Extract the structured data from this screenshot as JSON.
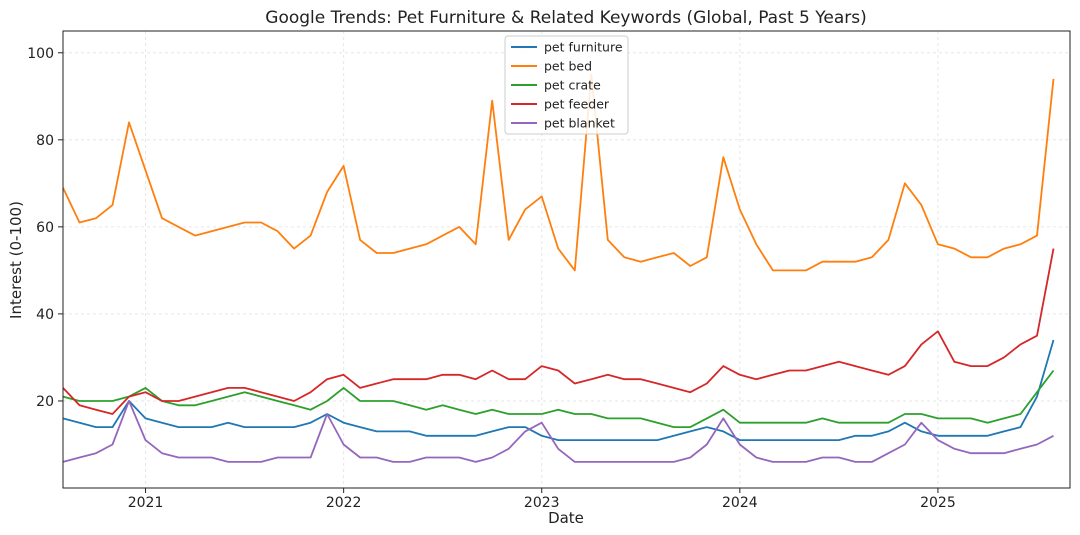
{
  "chart_data": {
    "type": "line",
    "title": "Google Trends: Pet Furniture & Related Keywords (Global, Past 5 Years)",
    "xlabel": "Date",
    "ylabel": "Interest (0-100)",
    "xlim": [
      "2020-08",
      "2025-09"
    ],
    "ylim": [
      0,
      105
    ],
    "x_ticks": [
      "2021",
      "2022",
      "2023",
      "2024",
      "2025"
    ],
    "y_ticks": [
      20,
      40,
      60,
      80,
      100
    ],
    "grid": true,
    "legend_position": "top-center",
    "x": [
      "2020-08",
      "2020-09",
      "2020-10",
      "2020-11",
      "2020-12",
      "2021-01",
      "2021-02",
      "2021-03",
      "2021-04",
      "2021-05",
      "2021-06",
      "2021-07",
      "2021-08",
      "2021-09",
      "2021-10",
      "2021-11",
      "2021-12",
      "2022-01",
      "2022-02",
      "2022-03",
      "2022-04",
      "2022-05",
      "2022-06",
      "2022-07",
      "2022-08",
      "2022-09",
      "2022-10",
      "2022-11",
      "2022-12",
      "2023-01",
      "2023-02",
      "2023-03",
      "2023-04",
      "2023-05",
      "2023-06",
      "2023-07",
      "2023-08",
      "2023-09",
      "2023-10",
      "2023-11",
      "2023-12",
      "2024-01",
      "2024-02",
      "2024-03",
      "2024-04",
      "2024-05",
      "2024-06",
      "2024-07",
      "2024-08",
      "2024-09",
      "2024-10",
      "2024-11",
      "2024-12",
      "2025-01",
      "2025-02",
      "2025-03",
      "2025-04",
      "2025-05",
      "2025-06",
      "2025-07",
      "2025-08"
    ],
    "series": [
      {
        "name": "pet furniture",
        "color": "#1f77b4",
        "values": [
          16,
          15,
          14,
          14,
          20,
          16,
          15,
          14,
          14,
          14,
          15,
          14,
          14,
          14,
          14,
          15,
          17,
          15,
          14,
          13,
          13,
          13,
          12,
          12,
          12,
          12,
          13,
          14,
          14,
          12,
          11,
          11,
          11,
          11,
          11,
          11,
          11,
          12,
          13,
          14,
          13,
          11,
          11,
          11,
          11,
          11,
          11,
          11,
          12,
          12,
          13,
          15,
          13,
          12,
          12,
          12,
          12,
          13,
          14,
          21,
          34
        ]
      },
      {
        "name": "pet bed",
        "color": "#ff7f0e",
        "values": [
          69,
          61,
          62,
          65,
          84,
          73,
          62,
          60,
          58,
          59,
          60,
          61,
          61,
          59,
          55,
          58,
          68,
          74,
          57,
          54,
          54,
          55,
          56,
          58,
          60,
          56,
          89,
          57,
          64,
          67,
          55,
          50,
          95,
          57,
          53,
          52,
          53,
          54,
          51,
          53,
          76,
          64,
          56,
          50,
          50,
          50,
          52,
          52,
          52,
          53,
          57,
          70,
          65,
          56,
          55,
          53,
          53,
          55,
          56,
          58,
          94
        ]
      },
      {
        "name": "pet crate",
        "color": "#2ca02c",
        "values": [
          21,
          20,
          20,
          20,
          21,
          23,
          20,
          19,
          19,
          20,
          21,
          22,
          21,
          20,
          19,
          18,
          20,
          23,
          20,
          20,
          20,
          19,
          18,
          19,
          18,
          17,
          18,
          17,
          17,
          17,
          18,
          17,
          17,
          16,
          16,
          16,
          15,
          14,
          14,
          16,
          18,
          15,
          15,
          15,
          15,
          15,
          16,
          15,
          15,
          15,
          15,
          17,
          17,
          16,
          16,
          16,
          15,
          16,
          17,
          22,
          27
        ]
      },
      {
        "name": "pet feeder",
        "color": "#d62728",
        "values": [
          23,
          19,
          18,
          17,
          21,
          22,
          20,
          20,
          21,
          22,
          23,
          23,
          22,
          21,
          20,
          22,
          25,
          26,
          23,
          24,
          25,
          25,
          25,
          26,
          26,
          25,
          27,
          25,
          25,
          28,
          27,
          24,
          25,
          26,
          25,
          25,
          24,
          23,
          22,
          24,
          28,
          26,
          25,
          26,
          27,
          27,
          28,
          29,
          28,
          27,
          26,
          28,
          33,
          36,
          29,
          28,
          28,
          30,
          33,
          35,
          55
        ]
      },
      {
        "name": "pet blanket",
        "color": "#9467bd",
        "values": [
          6,
          7,
          8,
          10,
          20,
          11,
          8,
          7,
          7,
          7,
          6,
          6,
          6,
          7,
          7,
          7,
          17,
          10,
          7,
          7,
          6,
          6,
          7,
          7,
          7,
          6,
          7,
          9,
          13,
          15,
          9,
          6,
          6,
          6,
          6,
          6,
          6,
          6,
          7,
          10,
          16,
          10,
          7,
          6,
          6,
          6,
          7,
          7,
          6,
          6,
          8,
          10,
          15,
          11,
          9,
          8,
          8,
          8,
          9,
          10,
          12
        ]
      }
    ]
  }
}
